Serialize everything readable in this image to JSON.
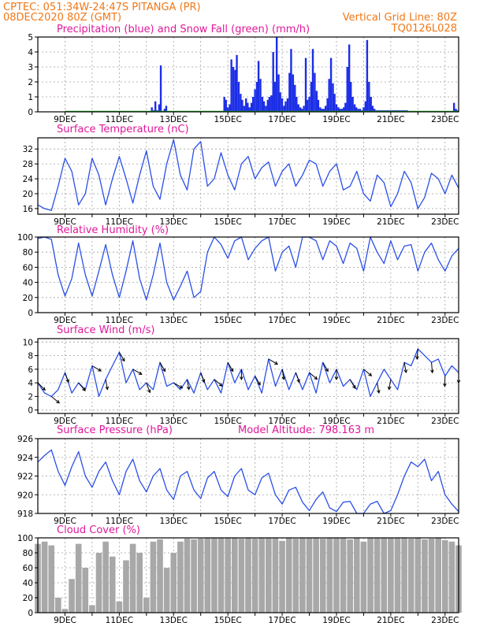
{
  "header": {
    "line1_left": "CPTEC:   051:34W-24:47S   PITANGA (PR)",
    "line2_left": "08DEC2020 80Z (GMT)",
    "line2_right": "Vertical Grid Line: 80Z",
    "line3_right": "TQ0126L028"
  },
  "date_labels": [
    "9DEC",
    "11DEC",
    "13DEC",
    "15DEC",
    "17DEC",
    "19DEC",
    "21DEC",
    "23DEC"
  ],
  "colors": {
    "header": "#f07818",
    "titles": "#e0189a",
    "line": "#2a4fe8",
    "bars": "#1c2ee6",
    "snow": "#20b020",
    "cloud": "#a8a8a8",
    "grid": "#a0a0a0"
  },
  "chart_data": [
    {
      "id": "precip",
      "type": "bar",
      "title": "Precipitation (blue) and Snow Fall (green) (mm/h)",
      "ylim": [
        0,
        5
      ],
      "yticks": [
        0,
        1,
        2,
        3,
        4,
        5
      ],
      "x_unit": "days since 08DEC2020 00Z",
      "series": [
        {
          "name": "Precipitation",
          "color": "#1c2ee6",
          "x": [
            4.2,
            4.27,
            4.33,
            4.4,
            4.47,
            4.53,
            4.67,
            4.73,
            6.87,
            6.93,
            7.0,
            7.07,
            7.13,
            7.2,
            7.27,
            7.33,
            7.4,
            7.47,
            7.53,
            7.6,
            7.67,
            7.73,
            7.8,
            7.87,
            7.93,
            8.0,
            8.07,
            8.13,
            8.2,
            8.27,
            8.33,
            8.4,
            8.47,
            8.53,
            8.6,
            8.67,
            8.73,
            8.8,
            8.87,
            8.93,
            9.0,
            9.07,
            9.13,
            9.2,
            9.27,
            9.33,
            9.4,
            9.47,
            9.53,
            9.6,
            9.67,
            9.73,
            9.8,
            9.87,
            9.93,
            10.0,
            10.07,
            10.13,
            10.2,
            10.27,
            10.33,
            10.4,
            10.47,
            10.53,
            10.6,
            10.67,
            10.73,
            10.8,
            10.87,
            10.93,
            11.0,
            11.07,
            11.13,
            11.2,
            11.27,
            11.33,
            11.4,
            11.47,
            11.53,
            11.6,
            11.67,
            11.73,
            11.8,
            11.87,
            11.93,
            12.0,
            12.07,
            12.13,
            12.2,
            12.27,
            12.33,
            12.4,
            12.47,
            12.53,
            12.6,
            12.67,
            12.73,
            12.8,
            12.87,
            12.93,
            13.0,
            13.07,
            13.13,
            13.2,
            13.27,
            13.33,
            13.4,
            13.47,
            13.53,
            13.6,
            15.33,
            15.4,
            15.47
          ],
          "values": [
            0.3,
            0.1,
            0.7,
            0.1,
            0.5,
            3.1,
            0.2,
            0.4,
            1.0,
            0.8,
            0.3,
            0.5,
            3.5,
            3.0,
            2.8,
            3.8,
            2.0,
            1.2,
            0.8,
            0.4,
            0.9,
            0.6,
            0.3,
            0.6,
            1.0,
            1.5,
            2.0,
            3.4,
            2.2,
            1.0,
            0.7,
            0.4,
            0.8,
            1.0,
            1.1,
            4.0,
            2.0,
            5.0,
            2.5,
            1.3,
            0.9,
            0.4,
            0.7,
            0.9,
            2.6,
            4.2,
            2.5,
            1.8,
            1.0,
            0.5,
            0.3,
            0.2,
            0.4,
            3.6,
            0.8,
            1.0,
            2.0,
            4.2,
            2.6,
            1.4,
            0.8,
            0.3,
            0.2,
            0.2,
            0.4,
            0.9,
            2.2,
            3.6,
            1.9,
            1.2,
            0.5,
            0.3,
            0.2,
            0.2,
            0.3,
            0.6,
            3.0,
            4.5,
            2.0,
            1.0,
            0.5,
            0.3,
            0.2,
            0.2,
            0.1,
            0.3,
            0.7,
            4.8,
            2.0,
            1.0,
            0.4,
            0.2,
            0.1,
            0.1,
            0.1,
            0.1,
            0.1,
            0.1,
            0.1,
            0.1,
            0.1,
            0.1,
            0.1,
            0.1,
            0.1,
            0.1,
            0.1,
            0.1,
            0.1,
            0.1,
            0.6,
            0.2,
            0.1
          ]
        },
        {
          "name": "Snow Fall",
          "color": "#20b020",
          "x": [
            1.0,
            15.5
          ],
          "values": [
            0,
            0
          ]
        }
      ]
    },
    {
      "id": "temp",
      "type": "line",
      "title": "Surface Temperature (nC)",
      "ylim": [
        14.5,
        35
      ],
      "yticks": [
        16,
        20,
        24,
        28,
        32
      ],
      "x": [
        0,
        0.25,
        0.5,
        0.75,
        1,
        1.25,
        1.5,
        1.75,
        2,
        2.25,
        2.5,
        2.75,
        3,
        3.25,
        3.5,
        3.75,
        4,
        4.25,
        4.5,
        4.75,
        5,
        5.25,
        5.5,
        5.75,
        6,
        6.25,
        6.5,
        6.75,
        7,
        7.25,
        7.5,
        7.75,
        8,
        8.25,
        8.5,
        8.75,
        9,
        9.25,
        9.5,
        9.75,
        10,
        10.25,
        10.5,
        10.75,
        11,
        11.25,
        11.5,
        11.75,
        12,
        12.25,
        12.5,
        12.75,
        13,
        13.25,
        13.5,
        13.75,
        14,
        14.25,
        14.5,
        14.75,
        15,
        15.25,
        15.5
      ],
      "values": [
        17.0,
        16.0,
        15.5,
        22.0,
        29.5,
        26.0,
        17.0,
        20.0,
        29.5,
        25.0,
        17.0,
        24.0,
        30.0,
        24.0,
        17.5,
        25.0,
        31.5,
        22.0,
        18.5,
        28.0,
        34.5,
        25.0,
        21.0,
        32.0,
        34.0,
        22.0,
        24.0,
        31.0,
        25.0,
        21.0,
        28.0,
        30.0,
        24.0,
        27.0,
        28.5,
        22.0,
        26.0,
        28.0,
        22.0,
        25.0,
        29.0,
        28.0,
        22.0,
        26.0,
        28.0,
        21.0,
        22.0,
        26.0,
        20.0,
        18.0,
        25.0,
        23.0,
        16.5,
        20.0,
        26.0,
        23.0,
        16.0,
        19.0,
        25.5,
        24.0,
        20.0,
        25.0,
        21.5
      ]
    },
    {
      "id": "rh",
      "type": "line",
      "title": "Relative Humidity (%)",
      "ylim": [
        0,
        100
      ],
      "yticks": [
        0,
        20,
        40,
        60,
        80,
        100
      ],
      "x": [
        0,
        0.25,
        0.5,
        0.75,
        1,
        1.25,
        1.5,
        1.75,
        2,
        2.25,
        2.5,
        2.75,
        3,
        3.25,
        3.5,
        3.75,
        4,
        4.25,
        4.5,
        4.75,
        5,
        5.25,
        5.5,
        5.75,
        6,
        6.25,
        6.5,
        6.75,
        7,
        7.25,
        7.5,
        7.75,
        8,
        8.25,
        8.5,
        8.75,
        9,
        9.25,
        9.5,
        9.75,
        10,
        10.25,
        10.5,
        10.75,
        11,
        11.25,
        11.5,
        11.75,
        12,
        12.25,
        12.5,
        12.75,
        13,
        13.25,
        13.5,
        13.75,
        14,
        14.25,
        14.5,
        14.75,
        15,
        15.25,
        15.5
      ],
      "values": [
        98,
        100,
        97,
        50,
        22,
        45,
        92,
        50,
        22,
        55,
        90,
        50,
        20,
        55,
        95,
        45,
        17,
        50,
        92,
        40,
        17,
        35,
        55,
        20,
        28,
        80,
        100,
        90,
        72,
        95,
        100,
        70,
        85,
        95,
        100,
        55,
        80,
        88,
        60,
        100,
        100,
        95,
        70,
        95,
        88,
        65,
        92,
        85,
        55,
        100,
        80,
        65,
        95,
        70,
        88,
        90,
        55,
        80,
        92,
        70,
        55,
        75,
        85
      ]
    },
    {
      "id": "wind",
      "type": "line",
      "title": "Surface Wind (m/s)",
      "ylim": [
        -0.5,
        10.5
      ],
      "yticks": [
        0,
        2,
        4,
        6,
        8,
        10
      ],
      "x": [
        0,
        0.25,
        0.5,
        0.75,
        1,
        1.25,
        1.5,
        1.75,
        2,
        2.25,
        2.5,
        2.75,
        3,
        3.25,
        3.5,
        3.75,
        4,
        4.25,
        4.5,
        4.75,
        5,
        5.25,
        5.5,
        5.75,
        6,
        6.25,
        6.5,
        6.75,
        7,
        7.25,
        7.5,
        7.75,
        8,
        8.25,
        8.5,
        8.75,
        9,
        9.25,
        9.5,
        9.75,
        10,
        10.25,
        10.5,
        10.75,
        11,
        11.25,
        11.5,
        11.75,
        12,
        12.25,
        12.5,
        12.75,
        13,
        13.25,
        13.5,
        13.75,
        14,
        14.25,
        14.5,
        14.75,
        15,
        15.25,
        15.5
      ],
      "values": [
        4.0,
        2.5,
        2.0,
        3.0,
        5.5,
        2.5,
        4.0,
        3.0,
        6.5,
        2.0,
        4.5,
        6.5,
        8.5,
        4.0,
        6.0,
        3.0,
        4.0,
        3.0,
        7.0,
        3.5,
        4.0,
        3.0,
        4.5,
        2.5,
        5.5,
        3.0,
        4.5,
        2.5,
        7.0,
        4.0,
        6.0,
        3.0,
        5.0,
        2.5,
        7.5,
        3.5,
        6.0,
        3.0,
        5.5,
        3.0,
        5.5,
        2.5,
        7.0,
        4.0,
        6.0,
        3.5,
        4.5,
        3.0,
        6.0,
        2.0,
        4.0,
        6.0,
        4.5,
        3.0,
        7.0,
        6.5,
        9.0,
        8.0,
        7.0,
        7.5,
        5.0,
        6.5,
        5.5
      ],
      "barbs_deg": [
        315,
        300,
        320,
        330,
        290,
        300,
        310,
        320,
        330,
        300,
        280,
        270,
        300,
        320,
        330,
        300,
        290,
        280,
        300,
        320,
        330,
        300,
        280,
        270,
        290,
        300,
        320,
        330,
        300,
        280,
        270,
        290,
        300,
        320,
        330,
        300,
        280,
        270,
        290,
        300,
        320,
        330,
        300,
        280,
        270,
        290,
        300,
        310,
        320,
        300,
        280,
        270,
        260,
        270,
        280,
        270,
        265,
        270,
        275,
        270,
        268,
        272,
        270
      ],
      "barbs_every": 2
    },
    {
      "id": "pres",
      "type": "line",
      "title": "Surface Pressure (hPa)",
      "annotation": "Model Altitude: 798.163 m",
      "ylim": [
        918,
        926
      ],
      "yticks": [
        918,
        920,
        922,
        924,
        926
      ],
      "x": [
        0,
        0.25,
        0.5,
        0.75,
        1,
        1.25,
        1.5,
        1.75,
        2,
        2.25,
        2.5,
        2.75,
        3,
        3.25,
        3.5,
        3.75,
        4,
        4.25,
        4.5,
        4.75,
        5,
        5.25,
        5.5,
        5.75,
        6,
        6.25,
        6.5,
        6.75,
        7,
        7.25,
        7.5,
        7.75,
        8,
        8.25,
        8.5,
        8.75,
        9,
        9.25,
        9.5,
        9.75,
        10,
        10.25,
        10.5,
        10.75,
        11,
        11.25,
        11.5,
        11.75,
        12,
        12.25,
        12.5,
        12.75,
        13,
        13.25,
        13.5,
        13.75,
        14,
        14.25,
        14.5,
        14.75,
        15,
        15.25,
        15.5
      ],
      "values": [
        923.5,
        924.2,
        924.8,
        922.5,
        921.0,
        923.0,
        924.6,
        922.0,
        920.8,
        922.5,
        923.5,
        921.5,
        920.0,
        922.5,
        923.8,
        921.5,
        920.3,
        922.0,
        922.8,
        920.5,
        919.5,
        922.0,
        922.5,
        920.5,
        919.6,
        921.8,
        922.5,
        920.5,
        919.8,
        922.0,
        922.8,
        920.5,
        920.0,
        921.8,
        922.3,
        920.0,
        919.0,
        920.5,
        920.8,
        919.2,
        918.3,
        919.5,
        920.3,
        918.6,
        918.2,
        919.2,
        919.3,
        918.0,
        918.0,
        919.0,
        919.3,
        918.0,
        918.3,
        920.0,
        922.0,
        923.5,
        923.0,
        923.8,
        921.5,
        922.5,
        920.0,
        919.0,
        918.2
      ]
    },
    {
      "id": "cloud",
      "type": "area",
      "title": "Cloud Cover (%)",
      "ylim": [
        0,
        100
      ],
      "yticks": [
        0,
        20,
        40,
        60,
        80,
        100
      ],
      "x": [
        0,
        0.25,
        0.5,
        0.75,
        1,
        1.25,
        1.5,
        1.75,
        2,
        2.25,
        2.5,
        2.75,
        3,
        3.25,
        3.5,
        3.75,
        4,
        4.25,
        4.5,
        4.75,
        5,
        5.25,
        5.5,
        5.75,
        6,
        6.25,
        6.5,
        6.75,
        7,
        7.25,
        7.5,
        7.75,
        8,
        8.25,
        8.5,
        8.75,
        9,
        9.25,
        9.5,
        9.75,
        10,
        10.25,
        10.5,
        10.75,
        11,
        11.25,
        11.5,
        11.75,
        12,
        12.25,
        12.5,
        12.75,
        13,
        13.25,
        13.5,
        13.75,
        14,
        14.25,
        14.5,
        14.75,
        15,
        15.25,
        15.5
      ],
      "values": [
        92,
        95,
        90,
        20,
        5,
        45,
        92,
        60,
        10,
        80,
        95,
        75,
        15,
        70,
        92,
        80,
        20,
        95,
        98,
        60,
        80,
        95,
        99,
        98,
        99,
        100,
        100,
        100,
        100,
        100,
        99,
        100,
        99,
        100,
        100,
        100,
        96,
        100,
        99,
        100,
        100,
        100,
        99,
        100,
        100,
        100,
        98,
        100,
        95,
        100,
        100,
        100,
        100,
        100,
        100,
        99,
        100,
        98,
        99,
        100,
        97,
        95,
        90
      ]
    }
  ]
}
